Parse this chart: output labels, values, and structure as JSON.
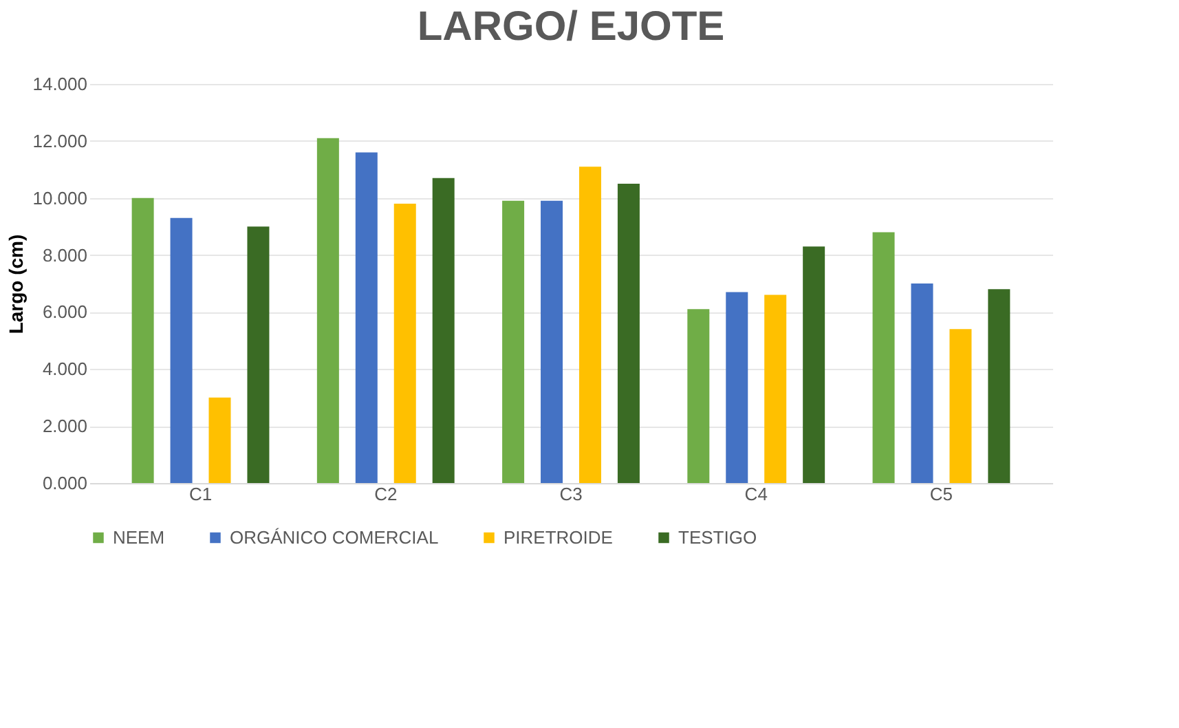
{
  "chart_data": {
    "type": "bar",
    "title": "LARGO/ EJOTE",
    "ylabel": "Largo (cm)",
    "categories": [
      "C1",
      "C2",
      "C3",
      "C4",
      "C5"
    ],
    "series": [
      {
        "name": "NEEM",
        "color": "#70ad47",
        "values": [
          10.0,
          12.1,
          9.9,
          6.1,
          8.8
        ]
      },
      {
        "name": "ORGÁNICO COMERCIAL",
        "color": "#4472c4",
        "values": [
          9.3,
          11.6,
          9.9,
          6.7,
          7.0
        ]
      },
      {
        "name": "PIRETROIDE",
        "color": "#ffc000",
        "values": [
          3.0,
          9.8,
          11.1,
          6.6,
          5.4
        ]
      },
      {
        "name": "TESTIGO",
        "color": "#3a6b24",
        "values": [
          9.0,
          10.7,
          10.5,
          8.3,
          6.8
        ]
      }
    ],
    "ylim": [
      0,
      14
    ],
    "yticks": [
      {
        "value": 0,
        "label": "0.000"
      },
      {
        "value": 2,
        "label": "2.000"
      },
      {
        "value": 4,
        "label": "4.000"
      },
      {
        "value": 6,
        "label": "6.000"
      },
      {
        "value": 8,
        "label": "8.000"
      },
      {
        "value": 10,
        "label": "10.000"
      },
      {
        "value": 12,
        "label": "12.000"
      },
      {
        "value": 14,
        "label": "14.000"
      }
    ],
    "grid": "y",
    "legend": "bottom"
  }
}
